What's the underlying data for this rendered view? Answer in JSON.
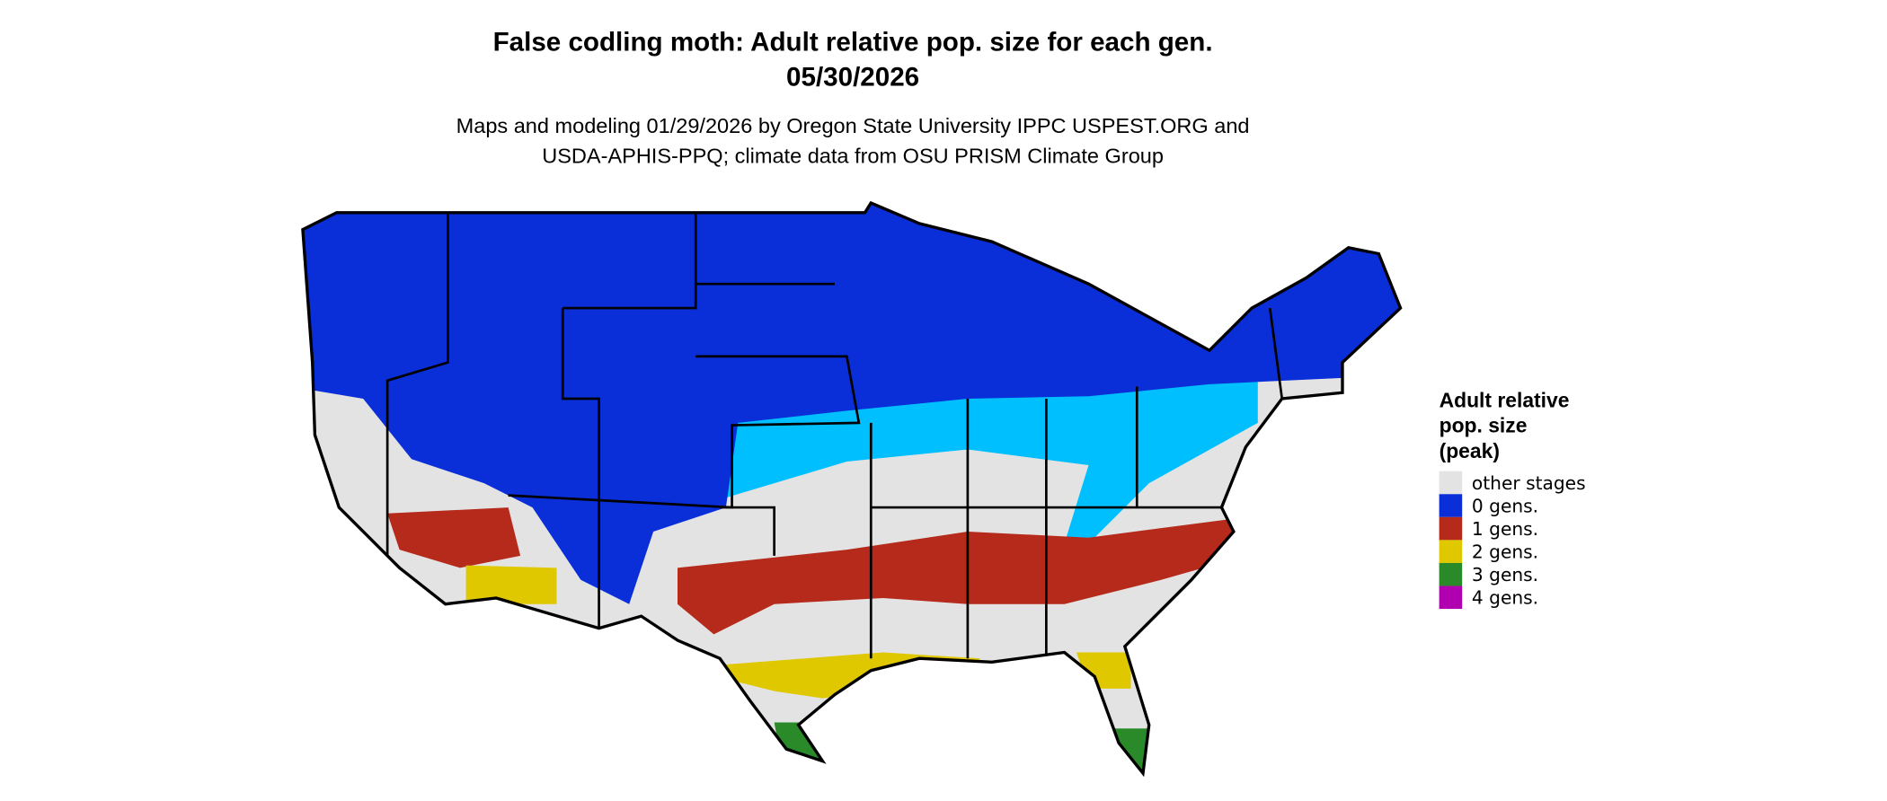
{
  "header": {
    "title": "False codling moth: Adult relative pop. size for each gen.",
    "date": "05/30/2026",
    "subtitle": [
      "Maps and modeling 01/29/2026 by Oregon State University IPPC USPEST.ORG and",
      "USDA-APHIS-PPQ; climate data from OSU PRISM Climate Group"
    ]
  },
  "legend": {
    "title": [
      "Adult relative",
      "pop. size",
      "(peak)"
    ],
    "items": [
      {
        "label": "other stages",
        "color": "#e3e3e3"
      },
      {
        "label": "0 gens.",
        "color": "#0a2ed8"
      },
      {
        "label": "1 gens.",
        "color": "#b52a1a"
      },
      {
        "label": "2 gens.",
        "color": "#e0c800"
      },
      {
        "label": "3 gens.",
        "color": "#2a8a2a"
      },
      {
        "label": "4 gens.",
        "color": "#b000b0"
      }
    ]
  }
}
